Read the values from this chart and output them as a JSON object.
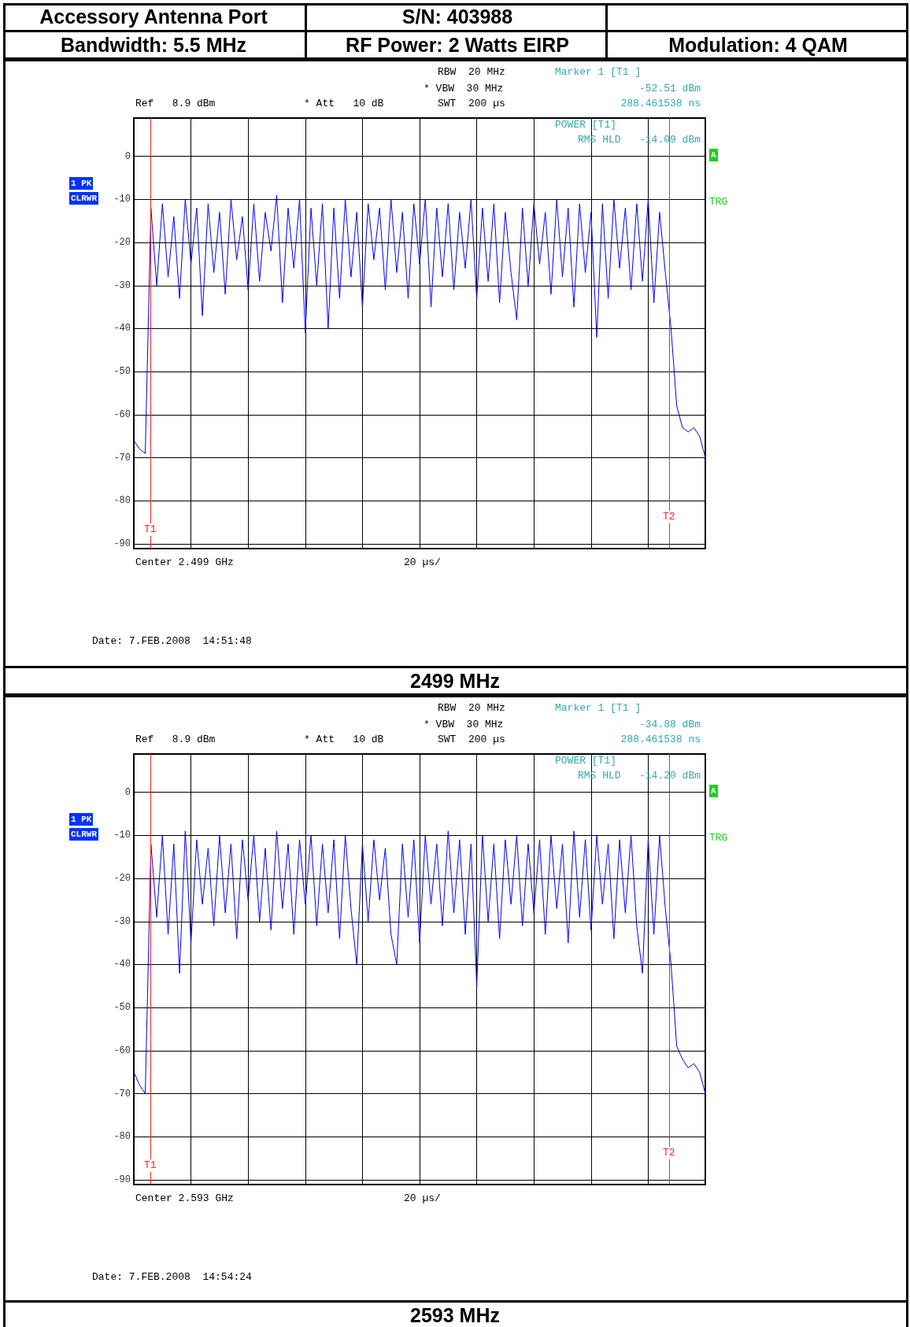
{
  "chart_data": [
    {
      "type": "line",
      "annotations": [
        "Accessory Antenna Port",
        "S/N: 403988",
        "Bandwidth: 5.5 MHz",
        "RF Power: 2 Watts EIRP",
        "Modulation: 4 QAM",
        "RBW  20 MHz",
        "* VBW  30 MHz",
        "SWT  200 µs",
        "Ref   8.9 dBm",
        "* Att   10 dB",
        "Marker 1 [T1 ]",
        "-52.51 dBm",
        "288.461538 ns",
        "POWER [T1]",
        "RMS HLD   -14.09 dBm",
        "1 PK",
        "CLRWR",
        "A",
        "TRG",
        "Center 2.499 GHz",
        "20 µs/",
        "Date: 7.FEB.2008  14:51:48",
        "T1",
        "T2",
        "2499 MHz"
      ],
      "categories": [
        null,
        null,
        null,
        null,
        null,
        null,
        null,
        null,
        null,
        null,
        null,
        null,
        null,
        null,
        null,
        null,
        null,
        null,
        null,
        null,
        null,
        null,
        null,
        null,
        null,
        null,
        null,
        null,
        null,
        null,
        null,
        null,
        null,
        null,
        null,
        null,
        null,
        null,
        null,
        null,
        null,
        null,
        null,
        null,
        null,
        null,
        null,
        null,
        null,
        null,
        null,
        null,
        null,
        null,
        null,
        null,
        null,
        null,
        null,
        null,
        null,
        null,
        null,
        null,
        null,
        null,
        null,
        null,
        null,
        null,
        null,
        null,
        null,
        null,
        null,
        null,
        null,
        null,
        null,
        null,
        null,
        null,
        null,
        null,
        null,
        null,
        null,
        null,
        null,
        null,
        null,
        null,
        null,
        null,
        null,
        null,
        null,
        null,
        null,
        null,
        null
      ],
      "series": [
        {
          "color": "#0000ff",
          "values": [
            -66,
            -68,
            -69,
            -12,
            -30,
            -11,
            -28,
            -14,
            -33,
            -10,
            -25,
            -12,
            -37,
            -11,
            -27,
            -13,
            -32,
            -10,
            -24,
            -14,
            -31,
            -11,
            -29,
            -13,
            -22,
            -9,
            -34,
            -12,
            -26,
            -10,
            -41,
            -12,
            -30,
            -11,
            -40,
            -12,
            -33,
            -10,
            -28,
            -13,
            -35,
            -11,
            -24,
            -12,
            -31,
            -10,
            -27,
            -13,
            -33,
            -11,
            -25,
            -10,
            -35,
            -12,
            -28,
            -11,
            -31,
            -13,
            -26,
            -10,
            -33,
            -12,
            -29,
            -11,
            -34,
            -13,
            -27,
            -38,
            -12,
            -30,
            -11,
            -25,
            -13,
            -32,
            -10,
            -28,
            -12,
            -35,
            -11,
            -27,
            -13,
            -42,
            -11,
            -33,
            -10,
            -26,
            -12,
            -31,
            -11,
            -29,
            -10,
            -34,
            -13,
            -27,
            -40,
            -58,
            -63,
            -64,
            -63,
            -65,
            -70
          ]
        }
      ],
      "ylim": [
        -91.1,
        8.9
      ],
      "yticks": [
        0,
        -10,
        -20,
        -30,
        -40,
        -50,
        -60,
        -70,
        -80,
        -90
      ],
      "grid": true,
      "tick_labels": "y",
      "line_style": "solid"
    },
    {
      "type": "line",
      "annotations": [
        "RBW  20 MHz",
        "* VBW  30 MHz",
        "SWT  200 µs",
        "Ref   8.9 dBm",
        "* Att   10 dB",
        "Marker 1 [T1 ]",
        "-34.88 dBm",
        "288.461538 ns",
        "POWER [T1]",
        "RMS HLD   -14.20 dBm",
        "1 PK",
        "CLRWR",
        "A",
        "TRG",
        "Center 2.593 GHz",
        "20 µs/",
        "Date: 7.FEB.2008  14:54:24",
        "T1",
        "T2",
        "2593 MHz"
      ],
      "categories": [
        null,
        null,
        null,
        null,
        null,
        null,
        null,
        null,
        null,
        null,
        null,
        null,
        null,
        null,
        null,
        null,
        null,
        null,
        null,
        null,
        null,
        null,
        null,
        null,
        null,
        null,
        null,
        null,
        null,
        null,
        null,
        null,
        null,
        null,
        null,
        null,
        null,
        null,
        null,
        null,
        null,
        null,
        null,
        null,
        null,
        null,
        null,
        null,
        null,
        null,
        null,
        null,
        null,
        null,
        null,
        null,
        null,
        null,
        null,
        null,
        null,
        null,
        null,
        null,
        null,
        null,
        null,
        null,
        null,
        null,
        null,
        null,
        null,
        null,
        null,
        null,
        null,
        null,
        null,
        null,
        null,
        null,
        null,
        null,
        null,
        null,
        null,
        null,
        null,
        null,
        null,
        null,
        null,
        null,
        null,
        null,
        null,
        null,
        null,
        null,
        null
      ],
      "series": [
        {
          "color": "#0000ff",
          "values": [
            -65,
            -68,
            -70,
            -12,
            -29,
            -10,
            -33,
            -12,
            -42,
            -9,
            -35,
            -11,
            -26,
            -13,
            -31,
            -10,
            -28,
            -12,
            -34,
            -11,
            -25,
            -10,
            -30,
            -13,
            -32,
            -9,
            -27,
            -12,
            -33,
            -11,
            -26,
            -10,
            -31,
            -12,
            -28,
            -11,
            -34,
            -10,
            -27,
            -40,
            -12,
            -30,
            -11,
            -25,
            -13,
            -33,
            -40,
            -12,
            -29,
            -11,
            -35,
            -10,
            -26,
            -12,
            -31,
            -9,
            -28,
            -11,
            -33,
            -12,
            -45,
            -10,
            -30,
            -12,
            -34,
            -11,
            -26,
            -10,
            -31,
            -12,
            -28,
            -11,
            -33,
            -10,
            -27,
            -12,
            -35,
            -9,
            -29,
            -11,
            -32,
            -10,
            -26,
            -12,
            -34,
            -11,
            -28,
            -10,
            -31,
            -42,
            -11,
            -33,
            -10,
            -27,
            -40,
            -59,
            -62,
            -64,
            -63,
            -65,
            -70
          ]
        }
      ],
      "ylim": [
        -91.1,
        8.9
      ],
      "yticks": [
        0,
        -10,
        -20,
        -30,
        -40,
        -50,
        -60,
        -70,
        -80,
        -90
      ],
      "grid": true,
      "tick_labels": "y",
      "line_style": "solid"
    }
  ]
}
